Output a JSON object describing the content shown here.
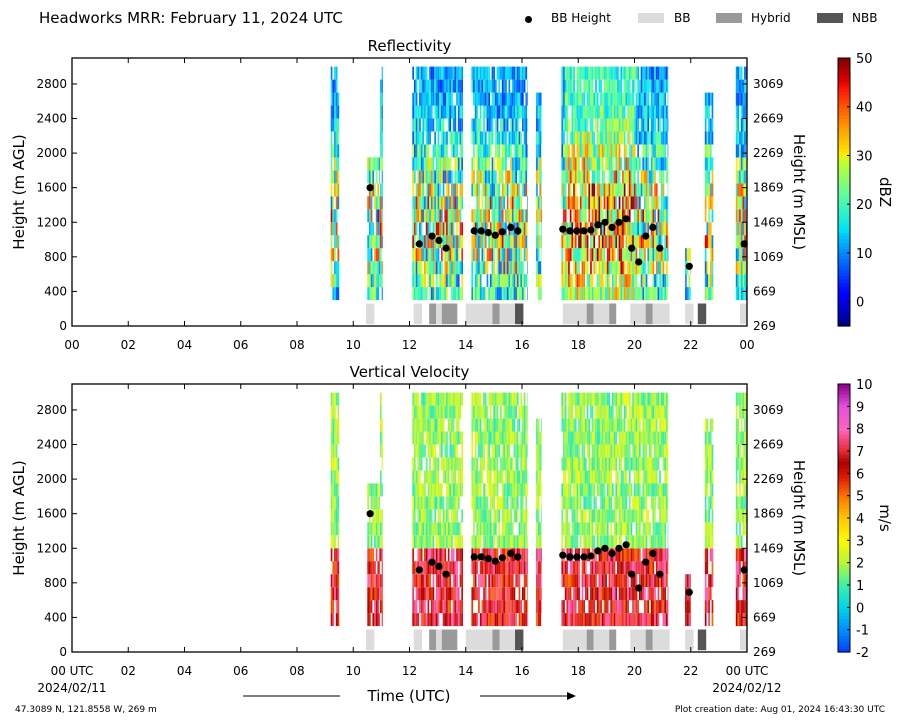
{
  "header": {
    "title": "Headworks MRR:  February 11, 2024 UTC",
    "legend": [
      {
        "label": "BB Height",
        "kind": "dot",
        "color": "#000000"
      },
      {
        "label": "BB",
        "kind": "box",
        "color": "#dcdcdc"
      },
      {
        "label": "Hybrid",
        "kind": "box",
        "color": "#9a9a9a"
      },
      {
        "label": "NBB",
        "kind": "box",
        "color": "#555555"
      }
    ]
  },
  "footer": {
    "location": "47.3089 N, 121.8558 W, 269 m",
    "creation": "Plot creation date: Aug 01, 2024 16:43:30 UTC",
    "xlabel": "Time (UTC)",
    "start_date": "2024/02/11",
    "end_date": "2024/02/12"
  },
  "chart_data": [
    {
      "type": "heatmap",
      "title": "Reflectivity",
      "ylabel": "Height (m AGL)",
      "y2label": "Height (m MSL)",
      "xlim": [
        0,
        24
      ],
      "ylim": [
        0,
        3100
      ],
      "x_ticks": [
        "00",
        "02",
        "04",
        "06",
        "08",
        "10",
        "12",
        "14",
        "16",
        "18",
        "20",
        "22",
        "00"
      ],
      "y_ticks": [
        0,
        400,
        800,
        1200,
        1600,
        2000,
        2400,
        2800
      ],
      "y2_ticks": [
        269,
        669,
        1069,
        1469,
        1869,
        2269,
        2669,
        3069
      ],
      "colorbar": {
        "label": "dBZ",
        "min": -5,
        "max": 50,
        "ticks": [
          0,
          10,
          20,
          30,
          40,
          50
        ]
      },
      "colormap": "jet"
    },
    {
      "type": "heatmap",
      "title": "Vertical Velocity",
      "ylabel": "Height (m AGL)",
      "y2label": "Height (m MSL)",
      "xlim": [
        0,
        24
      ],
      "ylim": [
        0,
        3100
      ],
      "x_ticks": [
        "00 UTC",
        "02",
        "04",
        "06",
        "08",
        "10",
        "12",
        "14",
        "16",
        "18",
        "20",
        "22",
        "00 UTC"
      ],
      "y_ticks": [
        0,
        400,
        800,
        1200,
        1600,
        2000,
        2400,
        2800
      ],
      "y2_ticks": [
        269,
        669,
        1069,
        1469,
        1869,
        2269,
        2669,
        3069
      ],
      "colorbar": {
        "label": "m/s",
        "min": -2,
        "max": 10,
        "ticks": [
          -2,
          -1,
          0,
          1,
          2,
          3,
          4,
          5,
          6,
          7,
          8,
          9,
          10
        ]
      },
      "colormap": "velocity"
    }
  ],
  "precip_periods": [
    {
      "x0": 9.2,
      "x1": 9.5,
      "top": 3000
    },
    {
      "x0": 10.5,
      "x1": 10.95,
      "top": 1900
    },
    {
      "x0": 10.95,
      "x1": 11.05,
      "top": 3000
    },
    {
      "x0": 12.1,
      "x1": 13.9,
      "top": 3000
    },
    {
      "x0": 14.2,
      "x1": 16.2,
      "top": 3000
    },
    {
      "x0": 16.5,
      "x1": 16.7,
      "top": 2600
    },
    {
      "x0": 17.4,
      "x1": 21.2,
      "top": 3000
    },
    {
      "x0": 21.8,
      "x1": 22.0,
      "top": 900
    },
    {
      "x0": 22.5,
      "x1": 22.8,
      "top": 2600
    },
    {
      "x0": 23.6,
      "x1": 24.0,
      "top": 3000
    }
  ],
  "bb_heights": [
    {
      "t": 10.6,
      "h": 1600
    },
    {
      "t": 12.35,
      "h": 950
    },
    {
      "t": 12.8,
      "h": 1040
    },
    {
      "t": 13.05,
      "h": 990
    },
    {
      "t": 13.3,
      "h": 900
    },
    {
      "t": 14.3,
      "h": 1100
    },
    {
      "t": 14.55,
      "h": 1100
    },
    {
      "t": 14.8,
      "h": 1080
    },
    {
      "t": 15.05,
      "h": 1050
    },
    {
      "t": 15.3,
      "h": 1090
    },
    {
      "t": 15.6,
      "h": 1140
    },
    {
      "t": 15.85,
      "h": 1100
    },
    {
      "t": 17.45,
      "h": 1120
    },
    {
      "t": 17.7,
      "h": 1100
    },
    {
      "t": 17.95,
      "h": 1100
    },
    {
      "t": 18.2,
      "h": 1100
    },
    {
      "t": 18.45,
      "h": 1110
    },
    {
      "t": 18.7,
      "h": 1170
    },
    {
      "t": 18.95,
      "h": 1200
    },
    {
      "t": 19.2,
      "h": 1140
    },
    {
      "t": 19.45,
      "h": 1200
    },
    {
      "t": 19.7,
      "h": 1240
    },
    {
      "t": 19.9,
      "h": 900
    },
    {
      "t": 20.15,
      "h": 740
    },
    {
      "t": 20.4,
      "h": 1040
    },
    {
      "t": 20.65,
      "h": 1140
    },
    {
      "t": 20.9,
      "h": 900
    },
    {
      "t": 21.95,
      "h": 690
    },
    {
      "t": 23.9,
      "h": 950
    }
  ],
  "bb_types": [
    {
      "t0": 10.45,
      "t1": 10.75,
      "type": "BB"
    },
    {
      "t0": 12.15,
      "t1": 12.45,
      "type": "BB"
    },
    {
      "t0": 12.7,
      "t1": 12.95,
      "type": "Hybrid"
    },
    {
      "t0": 12.95,
      "t1": 13.15,
      "type": "BB"
    },
    {
      "t0": 13.15,
      "t1": 13.7,
      "type": "Hybrid"
    },
    {
      "t0": 14.0,
      "t1": 14.95,
      "type": "BB"
    },
    {
      "t0": 14.95,
      "t1": 15.2,
      "type": "Hybrid"
    },
    {
      "t0": 15.2,
      "t1": 15.75,
      "type": "BB"
    },
    {
      "t0": 15.75,
      "t1": 16.05,
      "type": "NBB"
    },
    {
      "t0": 17.45,
      "t1": 18.3,
      "type": "BB"
    },
    {
      "t0": 18.3,
      "t1": 18.55,
      "type": "Hybrid"
    },
    {
      "t0": 18.55,
      "t1": 19.1,
      "type": "BB"
    },
    {
      "t0": 19.1,
      "t1": 19.35,
      "type": "Hybrid"
    },
    {
      "t0": 19.85,
      "t1": 20.4,
      "type": "BB"
    },
    {
      "t0": 20.4,
      "t1": 20.65,
      "type": "Hybrid"
    },
    {
      "t0": 20.65,
      "t1": 21.25,
      "type": "BB"
    },
    {
      "t0": 21.8,
      "t1": 22.1,
      "type": "BB"
    },
    {
      "t0": 22.25,
      "t1": 22.55,
      "type": "NBB"
    },
    {
      "t0": 23.75,
      "t1": 24.0,
      "type": "BB"
    }
  ],
  "colors": {
    "BB": "#dcdcdc",
    "Hybrid": "#9a9a9a",
    "NBB": "#555555",
    "dot": "#000000"
  }
}
